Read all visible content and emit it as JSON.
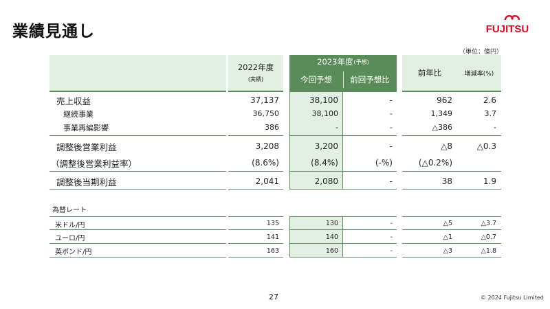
{
  "title": "業績見通し",
  "logo_text": "FUJITSU",
  "unit": "（単位：億円）",
  "headers": {
    "fy2022": "2022年度",
    "fy2022_sub": "(実績)",
    "fy2023": "2023年度",
    "fy2023_sub": "(予想)",
    "current_forecast": "今回予想",
    "vs_previous": "前回予想比",
    "yoy": "前年比",
    "yoy_rate": "増減率(%)"
  },
  "rows": [
    {
      "label": "売上収益",
      "fy2022": "37,137",
      "forecast": "38,100",
      "vs_prev": "-",
      "yoy": "962",
      "rate": "2.6"
    },
    {
      "label": "継続事業",
      "fy2022": "36,750",
      "forecast": "38,100",
      "vs_prev": "-",
      "yoy": "1,349",
      "rate": "3.7"
    },
    {
      "label": "事業再編影響",
      "fy2022": "386",
      "forecast": "-",
      "vs_prev": "-",
      "yoy": "△386",
      "rate": "-"
    },
    {
      "label": "調整後営業利益",
      "fy2022": "3,208",
      "forecast": "3,200",
      "vs_prev": "-",
      "yoy": "△8",
      "rate": "△0.3"
    },
    {
      "label": "（調整後営業利益率）",
      "fy2022": "(8.6%)",
      "forecast": "(8.4%)",
      "vs_prev": "(-%)",
      "yoy": "(△0.2%)",
      "rate": ""
    },
    {
      "label": "調整後当期利益",
      "fy2022": "2,041",
      "forecast": "2,080",
      "vs_prev": "-",
      "yoy": "38",
      "rate": "1.9"
    }
  ],
  "fx_title": "為替レート",
  "fx_rows": [
    {
      "label": "米ドル/円",
      "fy2022": "135",
      "forecast": "130",
      "vs_prev": "-",
      "yoy": "△5",
      "rate": "△3.7"
    },
    {
      "label": "ユーロ/円",
      "fy2022": "141",
      "forecast": "140",
      "vs_prev": "-",
      "yoy": "△1",
      "rate": "△0.7"
    },
    {
      "label": "英ポンド/円",
      "fy2022": "163",
      "forecast": "160",
      "vs_prev": "-",
      "yoy": "△3",
      "rate": "△1.8"
    }
  ],
  "page_number": "27",
  "copyright": "© 2024 Fujitsu Limited",
  "colors": {
    "accent_green": "#5a8c5a",
    "light_green": "#e3efe3",
    "logo_red": "#e2001a"
  }
}
